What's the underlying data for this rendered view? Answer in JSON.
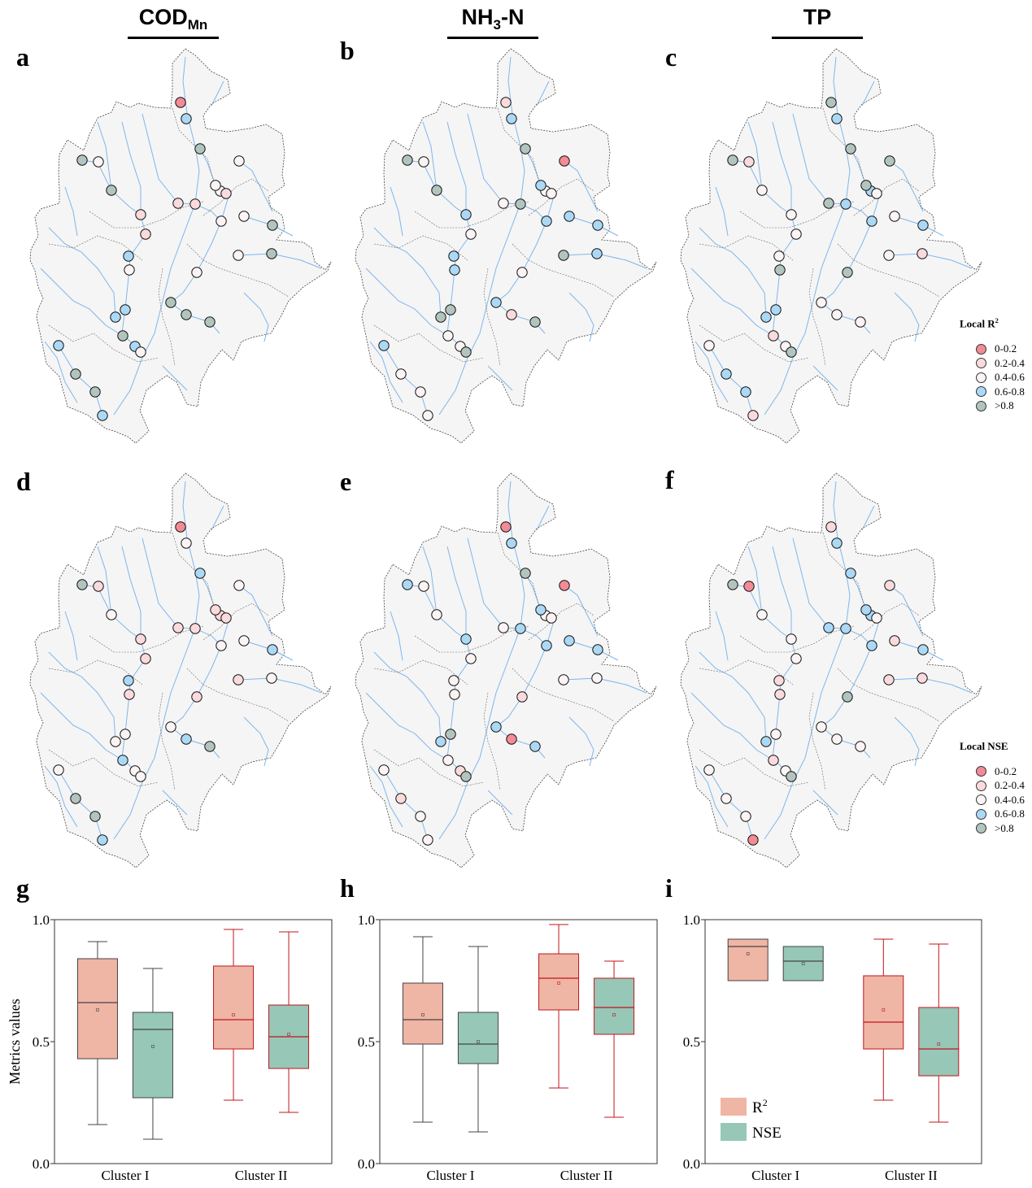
{
  "columns": [
    {
      "title": "COD",
      "sub": "Mn",
      "sub_type": "subscript"
    },
    {
      "title": "NH",
      "sub": "3",
      "tail": "-N",
      "sub_type": "subscript"
    },
    {
      "title": "TP",
      "sub": "",
      "tail": ""
    }
  ],
  "panel_labels": [
    "a",
    "b",
    "c",
    "d",
    "e",
    "f",
    "g",
    "h",
    "i"
  ],
  "class_colors": [
    "#f28b95",
    "#fadadd",
    "#fcf4f4",
    "#abd9f5",
    "#b2c4be"
  ],
  "map_colors": {
    "fill": "#f5f5f5",
    "river": "#7fb6ec",
    "boundary": "#444444"
  },
  "legends": {
    "r2": {
      "title": "Local R",
      "title_sup": "2",
      "items": [
        "0-0.2",
        "0.2-0.4",
        "0.4-0.6",
        "0.6-0.8",
        ">0.8"
      ]
    },
    "nse": {
      "title": "Local NSE",
      "title_sup": "",
      "items": [
        "0-0.2",
        "0.2-0.4",
        "0.4-0.6",
        "0.6-0.8",
        ">0.8"
      ]
    }
  },
  "maps": [
    {
      "panel": "a",
      "variable": "CODMn",
      "metric": "Local R2",
      "classes": [
        0,
        3,
        4,
        4,
        2,
        2,
        4,
        2,
        1,
        1,
        1,
        1,
        2,
        2,
        4,
        1,
        2,
        4,
        3,
        2,
        2,
        4,
        3,
        3,
        4,
        4,
        4,
        3,
        2,
        3,
        4,
        4,
        3,
        2
      ]
    },
    {
      "panel": "b",
      "variable": "NH3-N",
      "metric": "Local R2",
      "classes": [
        1,
        3,
        4,
        4,
        2,
        0,
        4,
        3,
        2,
        2,
        4,
        3,
        3,
        3,
        3,
        2,
        4,
        3,
        3,
        3,
        2,
        3,
        4,
        4,
        1,
        4,
        2,
        2,
        4,
        3,
        2,
        2,
        2,
        2
      ]
    },
    {
      "panel": "c",
      "variable": "TP",
      "metric": "Local R2",
      "classes": [
        4,
        3,
        4,
        4,
        1,
        4,
        2,
        4,
        2,
        4,
        3,
        2,
        3,
        2,
        3,
        2,
        2,
        1,
        2,
        4,
        4,
        2,
        3,
        3,
        2,
        2,
        1,
        2,
        4,
        2,
        3,
        3,
        1,
        3
      ]
    },
    {
      "panel": "d",
      "variable": "CODMn",
      "metric": "Local NSE",
      "classes": [
        0,
        2,
        3,
        4,
        1,
        2,
        2,
        1,
        1,
        1,
        1,
        1,
        2,
        2,
        3,
        1,
        1,
        2,
        3,
        1,
        1,
        2,
        2,
        2,
        3,
        4,
        3,
        2,
        2,
        2,
        4,
        4,
        3,
        1
      ]
    },
    {
      "panel": "e",
      "variable": "NH3-N",
      "metric": "Local NSE",
      "classes": [
        0,
        3,
        4,
        3,
        2,
        0,
        2,
        3,
        2,
        2,
        3,
        3,
        3,
        3,
        3,
        2,
        2,
        2,
        2,
        2,
        1,
        3,
        4,
        3,
        0,
        3,
        2,
        1,
        4,
        2,
        1,
        2,
        2,
        2
      ]
    },
    {
      "panel": "f",
      "variable": "TP",
      "metric": "Local NSE",
      "classes": [
        1,
        3,
        3,
        4,
        0,
        1,
        2,
        3,
        2,
        3,
        3,
        2,
        3,
        1,
        3,
        2,
        1,
        1,
        1,
        1,
        4,
        2,
        2,
        3,
        2,
        2,
        1,
        2,
        4,
        2,
        2,
        2,
        0,
        3
      ]
    }
  ],
  "chart_data": [
    {
      "type": "box",
      "panel": "g",
      "variable": "CODMn",
      "categories": [
        "Cluster I",
        "Cluster II"
      ],
      "ylabel": "Metrics values",
      "ylim": [
        0,
        1
      ],
      "yticks": [
        "0.0",
        "0.5",
        "1.0"
      ],
      "series": [
        {
          "name": "R2",
          "color": "#efb5a5",
          "boxes": [
            {
              "whisker_low": 0.16,
              "q1": 0.43,
              "median": 0.66,
              "q3": 0.84,
              "whisker_high": 0.91,
              "mean": 0.63
            },
            {
              "whisker_low": 0.26,
              "q1": 0.47,
              "median": 0.59,
              "q3": 0.81,
              "whisker_high": 0.96,
              "mean": 0.61
            }
          ]
        },
        {
          "name": "NSE",
          "color": "#96c7b7",
          "boxes": [
            {
              "whisker_low": 0.1,
              "q1": 0.27,
              "median": 0.55,
              "q3": 0.62,
              "whisker_high": 0.8,
              "mean": 0.48
            },
            {
              "whisker_low": 0.21,
              "q1": 0.39,
              "median": 0.52,
              "q3": 0.65,
              "whisker_high": 0.95,
              "mean": 0.53
            }
          ]
        }
      ],
      "outline_colors": [
        "#444444",
        "#c0161d"
      ]
    },
    {
      "type": "box",
      "panel": "h",
      "variable": "NH3-N",
      "categories": [
        "Cluster I",
        "Cluster II"
      ],
      "ylabel": "",
      "ylim": [
        0,
        1
      ],
      "yticks": [
        "0.0",
        "0.5",
        "1.0"
      ],
      "series": [
        {
          "name": "R2",
          "color": "#efb5a5",
          "boxes": [
            {
              "whisker_low": 0.17,
              "q1": 0.49,
              "median": 0.59,
              "q3": 0.74,
              "whisker_high": 0.93,
              "mean": 0.61
            },
            {
              "whisker_low": 0.31,
              "q1": 0.63,
              "median": 0.76,
              "q3": 0.86,
              "whisker_high": 0.98,
              "mean": 0.74
            }
          ]
        },
        {
          "name": "NSE",
          "color": "#96c7b7",
          "boxes": [
            {
              "whisker_low": 0.13,
              "q1": 0.41,
              "median": 0.49,
              "q3": 0.62,
              "whisker_high": 0.89,
              "mean": 0.5
            },
            {
              "whisker_low": 0.19,
              "q1": 0.53,
              "median": 0.64,
              "q3": 0.76,
              "whisker_high": 0.83,
              "mean": 0.61
            }
          ]
        }
      ],
      "outline_colors": [
        "#444444",
        "#c0161d"
      ]
    },
    {
      "type": "box",
      "panel": "i",
      "variable": "TP",
      "categories": [
        "Cluster I",
        "Cluster II"
      ],
      "ylabel": "",
      "ylim": [
        0,
        1
      ],
      "yticks": [
        "0.0",
        "0.5",
        "1.0"
      ],
      "legend": {
        "position": "bottom-left",
        "entries": [
          {
            "label": "R",
            "sup": "2",
            "color": "#efb5a5"
          },
          {
            "label": "NSE",
            "sup": "",
            "color": "#96c7b7"
          }
        ]
      },
      "series": [
        {
          "name": "R2",
          "color": "#efb5a5",
          "boxes": [
            {
              "whisker_low": 0.75,
              "q1": 0.75,
              "median": 0.89,
              "q3": 0.92,
              "whisker_high": 0.92,
              "mean": 0.86
            },
            {
              "whisker_low": 0.26,
              "q1": 0.47,
              "median": 0.58,
              "q3": 0.77,
              "whisker_high": 0.92,
              "mean": 0.63
            }
          ]
        },
        {
          "name": "NSE",
          "color": "#96c7b7",
          "boxes": [
            {
              "whisker_low": 0.75,
              "q1": 0.75,
              "median": 0.83,
              "q3": 0.89,
              "whisker_high": 0.89,
              "mean": 0.82
            },
            {
              "whisker_low": 0.17,
              "q1": 0.36,
              "median": 0.47,
              "q3": 0.64,
              "whisker_high": 0.9,
              "mean": 0.49
            }
          ]
        }
      ],
      "outline_colors": [
        "#444444",
        "#c0161d"
      ]
    }
  ]
}
